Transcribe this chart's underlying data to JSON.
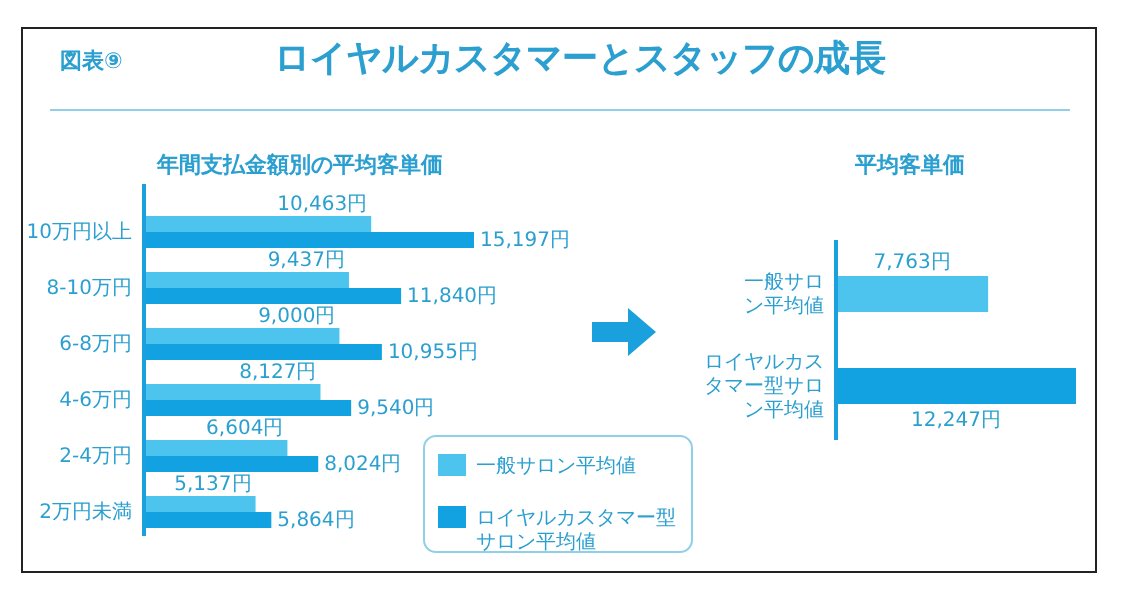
{
  "chart_data": [
    {
      "type": "bar",
      "orientation": "horizontal",
      "title": "年間支払金額別の平均客単価",
      "annotations": [
        "図表⑨",
        "ロイヤルカスタマーとスタッフの成長"
      ],
      "categories": [
        "10万円以上",
        "8-10万円",
        "6-8万円",
        "4-6万円",
        "2-4万円",
        "2万円未満"
      ],
      "series": [
        {
          "name": "一般サロン平均値",
          "color": "#4cc4ee",
          "values": [
            10463,
            9437,
            9000,
            8127,
            6604,
            5137
          ],
          "value_labels": [
            "10,463円",
            "9,437円",
            "9,000円",
            "8,127円",
            "6,604円",
            "5,137円"
          ]
        },
        {
          "name": "ロイヤルカスタマー型サロン平均値",
          "color": "#12a2e2",
          "values": [
            15197,
            11840,
            10955,
            9540,
            8024,
            5864
          ],
          "value_labels": [
            "15,197円",
            "11,840円",
            "10,955円",
            "9,540円",
            "8,024円",
            "5,864円"
          ]
        }
      ],
      "legend": "bottom right"
    },
    {
      "type": "bar",
      "orientation": "horizontal",
      "title": "平均客単価",
      "categories": [
        "一般サロン平均値",
        "ロイヤルカスタマー型サロン平均値"
      ],
      "values": [
        7763,
        12247
      ],
      "colors": [
        "#4cc4ee",
        "#12a2e2"
      ],
      "value_labels": [
        "7,763円",
        "12,247円"
      ]
    }
  ]
}
